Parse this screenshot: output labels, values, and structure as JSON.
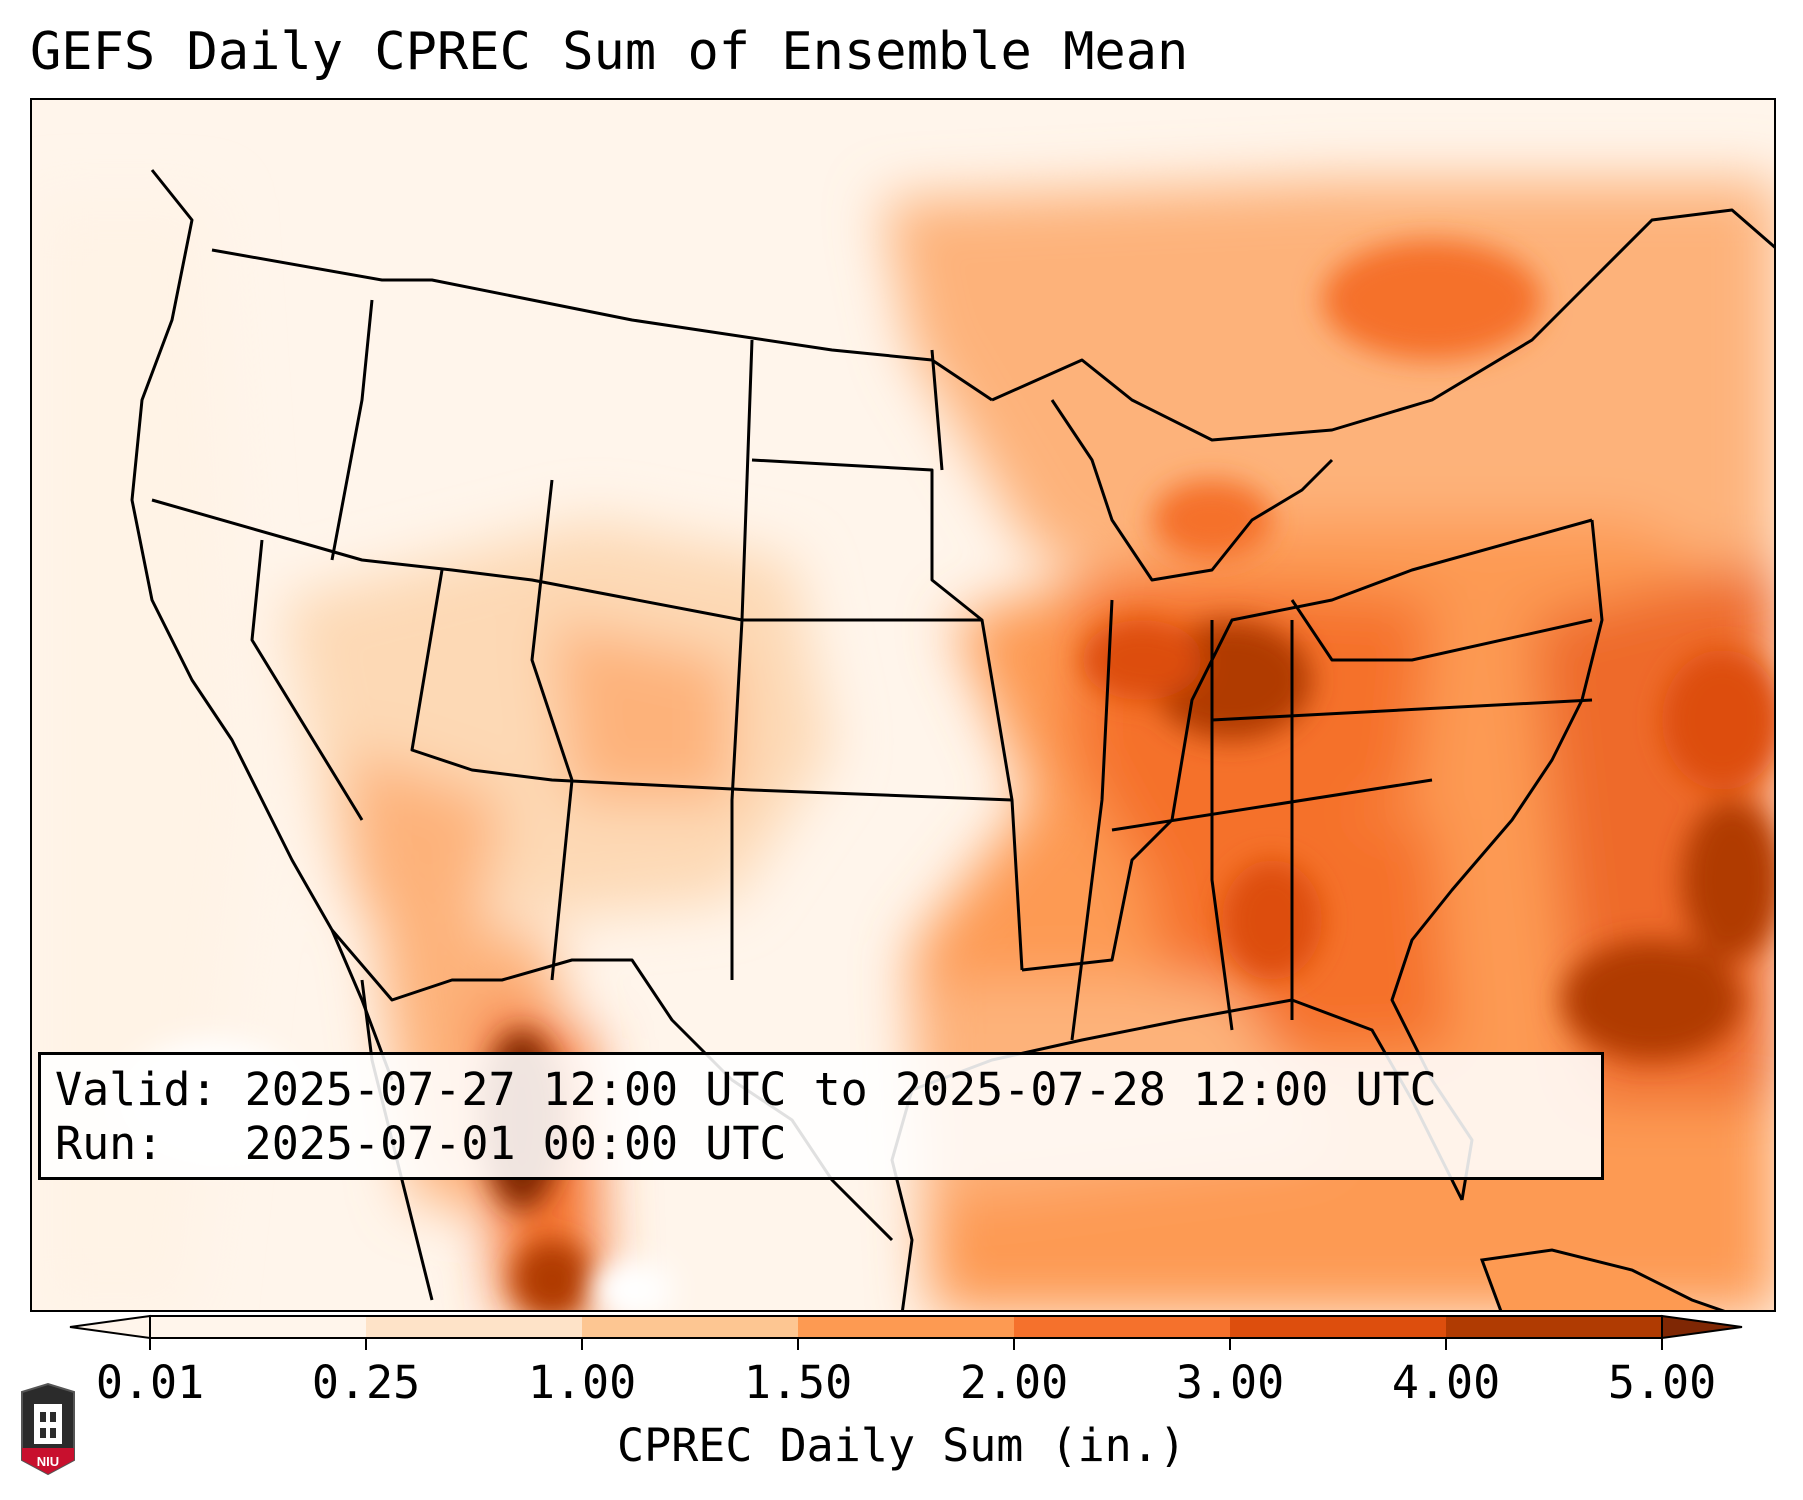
{
  "title": "GEFS Daily CPREC Sum of Ensemble Mean",
  "info": {
    "valid_label": "Valid:",
    "valid_value": "2025-07-27 12:00 UTC to 2025-07-28 12:00 UTC",
    "run_label": "Run:",
    "run_value": "2025-07-01 00:00 UTC"
  },
  "colorbar": {
    "label": "CPREC Daily Sum (in.)",
    "ticks": [
      "0.01",
      "0.25",
      "1.00",
      "1.50",
      "2.00",
      "3.00",
      "4.00",
      "5.00"
    ],
    "colors": [
      "#fff5eb",
      "#fee3c8",
      "#fdc692",
      "#fd9a52",
      "#f5712c",
      "#dd4e0d",
      "#b03b02",
      "#7f2704"
    ]
  },
  "colors": {
    "coastline": "#000000",
    "background": "#ffffff"
  },
  "logo": {
    "icon": "niu-seal-icon",
    "text": "NIU"
  }
}
